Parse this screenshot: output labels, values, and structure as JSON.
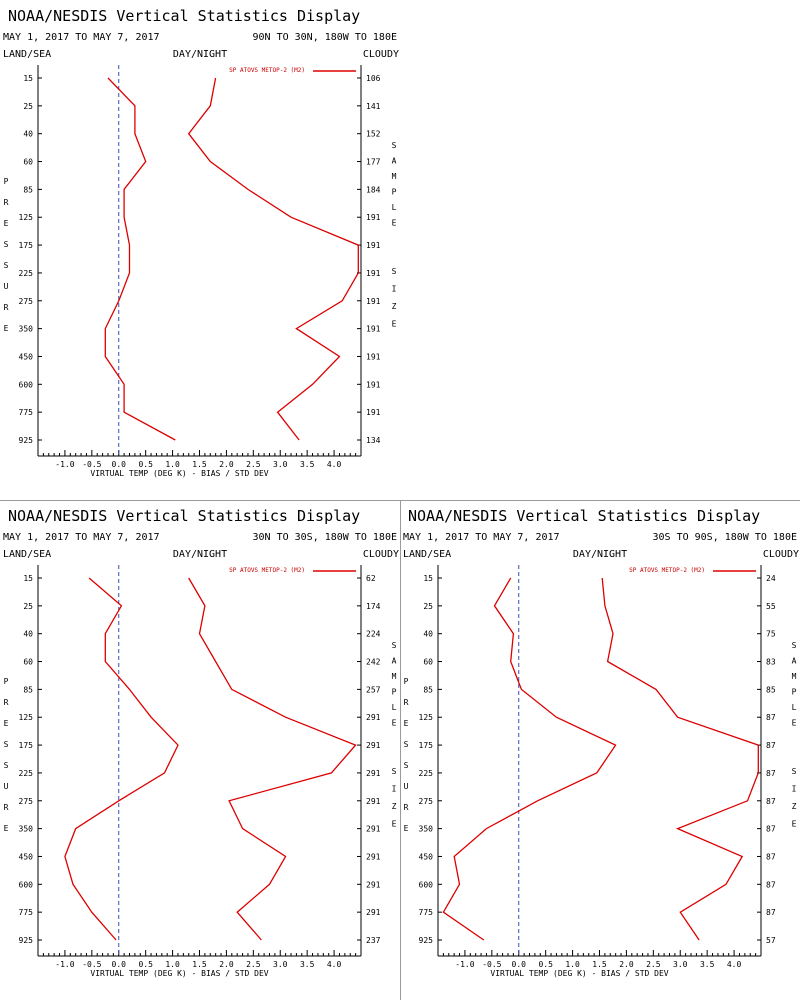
{
  "colors": {
    "series": "#dd0000",
    "axis": "#000000",
    "zero_line": "#3a4fb5",
    "divider": "#9a9a9a"
  },
  "common": {
    "title": "NOAA/NESDIS Vertical Statistics Display",
    "date_range": "MAY 1, 2017 TO MAY 7, 2017",
    "land_sea": "LAND/SEA",
    "day_night": "DAY/NIGHT",
    "cloudy": "CLOUDY",
    "pressure_label": "PRESSURE",
    "sample_size_label": "SAMPLE SIZE",
    "legend_label": "SP ATOVS METOP-2 (M2)",
    "xlabel": "VIRTUAL TEMP (DEG K) - BIAS / STD DEV"
  },
  "chart_data": [
    {
      "type": "line",
      "region": "90N TO 30N, 180W TO 180E",
      "pressure_levels": [
        "15",
        "25",
        "40",
        "60",
        "85",
        "125",
        "175",
        "225",
        "275",
        "350",
        "450",
        "600",
        "775",
        "925"
      ],
      "sample_sizes": [
        "106",
        "141",
        "152",
        "177",
        "184",
        "191",
        "191",
        "191",
        "191",
        "191",
        "191",
        "191",
        "191",
        "134"
      ],
      "xlim": [
        -1.5,
        4.5
      ],
      "xticks": [
        "-1.0",
        "-0.5",
        "0.0",
        "0.5",
        "1.0",
        "1.5",
        "2.0",
        "2.5",
        "3.0",
        "3.5",
        "4.0"
      ],
      "series": [
        {
          "name": "bias",
          "values": [
            -0.2,
            0.3,
            0.3,
            0.5,
            0.1,
            0.1,
            0.2,
            0.2,
            0.0,
            -0.25,
            -0.25,
            0.1,
            0.1,
            1.05
          ]
        },
        {
          "name": "std_dev",
          "values": [
            1.8,
            1.7,
            1.3,
            1.7,
            2.4,
            3.2,
            4.45,
            4.45,
            4.15,
            3.3,
            4.1,
            3.6,
            2.95,
            3.35
          ]
        }
      ]
    },
    {
      "type": "line",
      "region": "30N TO 30S, 180W TO 180E",
      "pressure_levels": [
        "15",
        "25",
        "40",
        "60",
        "85",
        "125",
        "175",
        "225",
        "275",
        "350",
        "450",
        "600",
        "775",
        "925"
      ],
      "sample_sizes": [
        "62",
        "174",
        "224",
        "242",
        "257",
        "291",
        "291",
        "291",
        "291",
        "291",
        "291",
        "291",
        "291",
        "237"
      ],
      "xlim": [
        -1.5,
        4.5
      ],
      "xticks": [
        "-1.0",
        "-0.5",
        "0.0",
        "0.5",
        "1.0",
        "1.5",
        "2.0",
        "2.5",
        "3.0",
        "3.5",
        "4.0"
      ],
      "series": [
        {
          "name": "bias",
          "values": [
            -0.55,
            0.05,
            -0.25,
            -0.25,
            0.2,
            0.6,
            1.1,
            0.85,
            0.0,
            -0.8,
            -1.0,
            -0.85,
            -0.5,
            -0.05
          ]
        },
        {
          "name": "std_dev",
          "values": [
            1.3,
            1.6,
            1.5,
            1.8,
            2.1,
            3.1,
            4.4,
            3.95,
            2.05,
            2.3,
            3.1,
            2.8,
            2.2,
            2.65
          ]
        }
      ]
    },
    {
      "type": "line",
      "region": "30S TO 90S, 180W TO 180E",
      "pressure_levels": [
        "15",
        "25",
        "40",
        "60",
        "85",
        "125",
        "175",
        "225",
        "275",
        "350",
        "450",
        "600",
        "775",
        "925"
      ],
      "sample_sizes": [
        "24",
        "55",
        "75",
        "83",
        "85",
        "87",
        "87",
        "87",
        "87",
        "87",
        "87",
        "87",
        "87",
        "57"
      ],
      "xlim": [
        -1.5,
        4.5
      ],
      "xticks": [
        "-1.0",
        "-0.5",
        "0.0",
        "0.5",
        "1.0",
        "1.5",
        "2.0",
        "2.5",
        "3.0",
        "3.5",
        "4.0"
      ],
      "series": [
        {
          "name": "bias",
          "values": [
            -0.15,
            -0.45,
            -0.1,
            -0.15,
            0.05,
            0.7,
            1.8,
            1.45,
            0.35,
            -0.6,
            -1.2,
            -1.1,
            -1.4,
            -0.65
          ]
        },
        {
          "name": "std_dev",
          "values": [
            1.55,
            1.6,
            1.75,
            1.65,
            2.55,
            2.95,
            4.45,
            4.45,
            4.25,
            2.95,
            4.15,
            3.85,
            3.0,
            3.35
          ]
        }
      ]
    }
  ]
}
